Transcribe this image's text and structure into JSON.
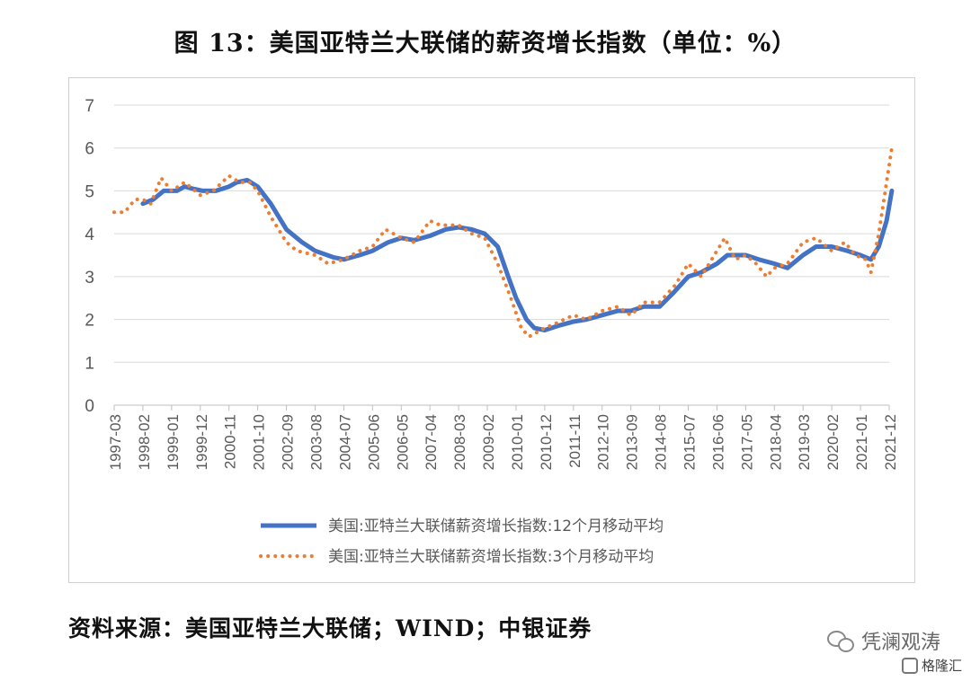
{
  "title": "图 13：美国亚特兰大联储的薪资增长指数（单位：%）",
  "source": "资料来源：美国亚特兰大联储；WIND；中银证券",
  "watermark": "凭澜观涛",
  "logo_text": "格隆汇",
  "chart_data": {
    "type": "line",
    "ylim": [
      0,
      7
    ],
    "yticks": [
      0,
      1,
      2,
      3,
      4,
      5,
      6,
      7
    ],
    "x_range": [
      "1997-03",
      "2021-12"
    ],
    "xticks": [
      "1997-03",
      "1998-02",
      "1999-01",
      "1999-12",
      "2000-11",
      "2001-10",
      "2002-09",
      "2003-08",
      "2004-07",
      "2005-06",
      "2006-05",
      "2007-04",
      "2008-03",
      "2009-02",
      "2010-01",
      "2010-12",
      "2011-11",
      "2012-10",
      "2013-09",
      "2014-08",
      "2015-07",
      "2016-06",
      "2017-05",
      "2018-04",
      "2019-03",
      "2020-02",
      "2021-01",
      "2021-12"
    ],
    "legend_position": "bottom",
    "colors": {
      "ma12": "#4472c4",
      "ma3": "#ed7d31"
    },
    "series": [
      {
        "name": "美国:亚特兰大联储薪资增长指数:12个月移动平均",
        "key": "ma12",
        "style": "solid",
        "points": [
          [
            "1998-02",
            4.7
          ],
          [
            "1998-06",
            4.8
          ],
          [
            "1998-10",
            5.0
          ],
          [
            "1999-03",
            5.0
          ],
          [
            "1999-06",
            5.1
          ],
          [
            "1999-09",
            5.05
          ],
          [
            "2000-01",
            5.0
          ],
          [
            "2000-06",
            5.0
          ],
          [
            "2000-11",
            5.1
          ],
          [
            "2001-02",
            5.2
          ],
          [
            "2001-06",
            5.25
          ],
          [
            "2001-10",
            5.1
          ],
          [
            "2002-03",
            4.7
          ],
          [
            "2002-09",
            4.1
          ],
          [
            "2003-03",
            3.8
          ],
          [
            "2003-08",
            3.6
          ],
          [
            "2004-03",
            3.45
          ],
          [
            "2004-07",
            3.4
          ],
          [
            "2005-01",
            3.5
          ],
          [
            "2005-06",
            3.6
          ],
          [
            "2005-12",
            3.8
          ],
          [
            "2006-05",
            3.9
          ],
          [
            "2006-10",
            3.85
          ],
          [
            "2007-04",
            3.95
          ],
          [
            "2007-10",
            4.1
          ],
          [
            "2008-03",
            4.15
          ],
          [
            "2008-08",
            4.1
          ],
          [
            "2009-01",
            4.0
          ],
          [
            "2009-06",
            3.7
          ],
          [
            "2009-10",
            3.0
          ],
          [
            "2010-01",
            2.5
          ],
          [
            "2010-05",
            2.0
          ],
          [
            "2010-08",
            1.8
          ],
          [
            "2010-12",
            1.75
          ],
          [
            "2011-05",
            1.85
          ],
          [
            "2011-11",
            1.95
          ],
          [
            "2012-04",
            2.0
          ],
          [
            "2012-10",
            2.1
          ],
          [
            "2013-04",
            2.2
          ],
          [
            "2013-09",
            2.2
          ],
          [
            "2014-02",
            2.3
          ],
          [
            "2014-08",
            2.3
          ],
          [
            "2015-01",
            2.6
          ],
          [
            "2015-07",
            3.0
          ],
          [
            "2015-12",
            3.1
          ],
          [
            "2016-06",
            3.3
          ],
          [
            "2016-10",
            3.5
          ],
          [
            "2017-05",
            3.5
          ],
          [
            "2017-10",
            3.4
          ],
          [
            "2018-04",
            3.3
          ],
          [
            "2018-09",
            3.2
          ],
          [
            "2019-03",
            3.5
          ],
          [
            "2019-08",
            3.7
          ],
          [
            "2020-02",
            3.7
          ],
          [
            "2020-08",
            3.6
          ],
          [
            "2021-01",
            3.5
          ],
          [
            "2021-05",
            3.4
          ],
          [
            "2021-08",
            3.7
          ],
          [
            "2021-11",
            4.3
          ],
          [
            "2022-01",
            5.0
          ]
        ]
      },
      {
        "name": "美国:亚特兰大联储薪资增长指数:3个月移动平均",
        "key": "ma3",
        "style": "dotted",
        "points": [
          [
            "1997-03",
            4.5
          ],
          [
            "1997-07",
            4.5
          ],
          [
            "1997-11",
            4.8
          ],
          [
            "1998-02",
            4.8
          ],
          [
            "1998-05",
            4.7
          ],
          [
            "1998-09",
            5.3
          ],
          [
            "1999-01",
            5.0
          ],
          [
            "1999-06",
            5.2
          ],
          [
            "1999-12",
            4.9
          ],
          [
            "2000-05",
            5.0
          ],
          [
            "2000-11",
            5.35
          ],
          [
            "2001-03",
            5.2
          ],
          [
            "2001-07",
            5.2
          ],
          [
            "2001-10",
            5.0
          ],
          [
            "2002-03",
            4.4
          ],
          [
            "2002-09",
            3.8
          ],
          [
            "2003-01",
            3.6
          ],
          [
            "2003-08",
            3.5
          ],
          [
            "2004-01",
            3.3
          ],
          [
            "2004-07",
            3.4
          ],
          [
            "2005-01",
            3.6
          ],
          [
            "2005-06",
            3.7
          ],
          [
            "2005-11",
            4.1
          ],
          [
            "2006-05",
            3.9
          ],
          [
            "2006-10",
            3.8
          ],
          [
            "2007-04",
            4.3
          ],
          [
            "2007-08",
            4.2
          ],
          [
            "2008-03",
            4.2
          ],
          [
            "2008-08",
            4.0
          ],
          [
            "2009-01",
            3.9
          ],
          [
            "2009-06",
            3.3
          ],
          [
            "2009-11",
            2.5
          ],
          [
            "2010-03",
            1.8
          ],
          [
            "2010-06",
            1.6
          ],
          [
            "2010-12",
            1.8
          ],
          [
            "2011-04",
            1.9
          ],
          [
            "2011-11",
            2.1
          ],
          [
            "2012-04",
            2.0
          ],
          [
            "2012-10",
            2.2
          ],
          [
            "2013-04",
            2.3
          ],
          [
            "2013-09",
            2.1
          ],
          [
            "2014-02",
            2.4
          ],
          [
            "2014-08",
            2.4
          ],
          [
            "2015-02",
            2.8
          ],
          [
            "2015-07",
            3.3
          ],
          [
            "2015-12",
            3.0
          ],
          [
            "2016-06",
            3.6
          ],
          [
            "2016-09",
            3.9
          ],
          [
            "2017-01",
            3.4
          ],
          [
            "2017-05",
            3.5
          ],
          [
            "2017-09",
            3.3
          ],
          [
            "2018-01",
            3.0
          ],
          [
            "2018-04",
            3.2
          ],
          [
            "2018-09",
            3.3
          ],
          [
            "2019-03",
            3.8
          ],
          [
            "2019-08",
            3.9
          ],
          [
            "2020-02",
            3.6
          ],
          [
            "2020-07",
            3.8
          ],
          [
            "2020-11",
            3.5
          ],
          [
            "2021-03",
            3.4
          ],
          [
            "2021-05",
            3.1
          ],
          [
            "2021-08",
            4.0
          ],
          [
            "2021-11",
            5.2
          ],
          [
            "2022-01",
            6.0
          ]
        ]
      }
    ]
  }
}
